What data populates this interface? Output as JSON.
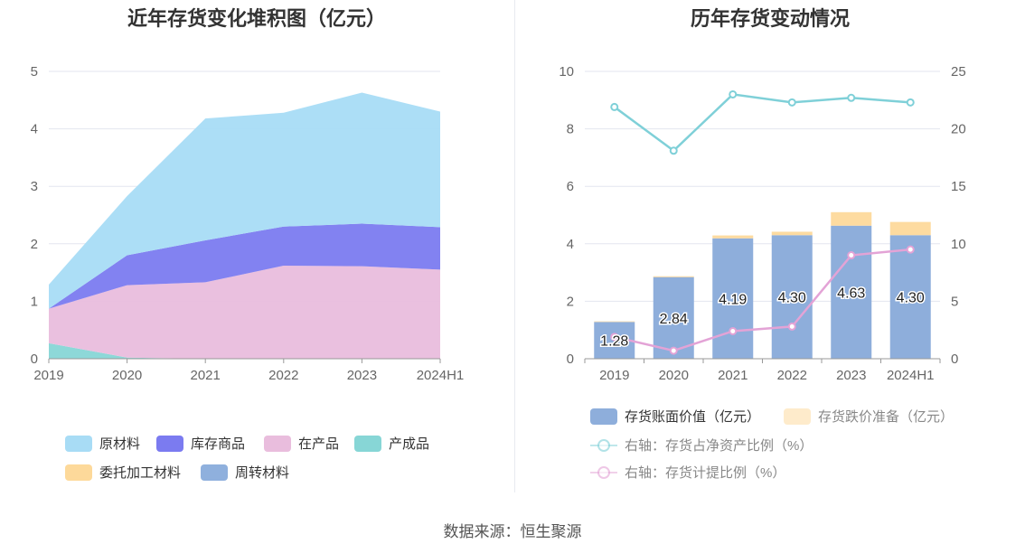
{
  "source_label": "数据来源：恒生聚源",
  "chart_data": [
    {
      "type": "area",
      "title": "近年存货变化堆积图（亿元）",
      "categories": [
        "2019",
        "2020",
        "2021",
        "2022",
        "2023",
        "2024H1"
      ],
      "ylim": [
        0,
        5
      ],
      "yticks": [
        "0",
        "1",
        "2",
        "3",
        "4",
        "5"
      ],
      "stacked": true,
      "series": [
        {
          "name": "原材料",
          "color": "#a8dcf5",
          "values": [
            0.42,
            1.03,
            2.12,
            1.98,
            2.28,
            2.01
          ]
        },
        {
          "name": "库存商品",
          "color": "#7b7bf0",
          "values": [
            0.0,
            0.52,
            0.73,
            0.68,
            0.74,
            0.74
          ]
        },
        {
          "name": "在产品",
          "color": "#e9bddd",
          "values": [
            0.6,
            1.26,
            1.33,
            1.62,
            1.61,
            1.55
          ]
        },
        {
          "name": "产成品",
          "color": "#87d6d6",
          "values": [
            0.27,
            0.02,
            0.0,
            0.0,
            0.0,
            0.0
          ]
        },
        {
          "name": "委托加工材料",
          "color": "#fdd99a",
          "values": [
            0,
            0,
            0,
            0,
            0,
            0
          ]
        },
        {
          "name": "周转材料",
          "color": "#8fb0dd",
          "values": [
            0,
            0,
            0,
            0,
            0,
            0
          ]
        }
      ],
      "legend_position": "bottom"
    },
    {
      "type": "bar",
      "title": "历年存货变动情况",
      "categories": [
        "2019",
        "2020",
        "2021",
        "2022",
        "2023",
        "2024H1"
      ],
      "ylim": [
        0,
        10
      ],
      "yticks": [
        "0",
        "2",
        "4",
        "6",
        "8",
        "10"
      ],
      "y2lim": [
        0,
        25
      ],
      "y2ticks": [
        "0",
        "5",
        "10",
        "15",
        "20",
        "25"
      ],
      "bar_series": [
        {
          "name": "存货账面价值（亿元）",
          "color": "#8eaedb",
          "values": [
            1.28,
            2.84,
            4.19,
            4.3,
            4.63,
            4.3
          ],
          "labels": [
            "1.28",
            "2.84",
            "4.19",
            "4.30",
            "4.63",
            "4.30"
          ]
        },
        {
          "name": "存货跌价准备（亿元）",
          "color": "#fddba0",
          "values": [
            0.02,
            0.03,
            0.1,
            0.12,
            0.47,
            0.46
          ]
        }
      ],
      "line_series": [
        {
          "name": "右轴：存货占净资产比例（%）",
          "color": "#7fd0d8",
          "values": [
            21.9,
            18.1,
            23.0,
            22.3,
            22.7,
            22.3
          ]
        },
        {
          "name": "右轴：存货计提比例（%）",
          "color": "#e3a3d6",
          "values": [
            1.9,
            0.7,
            2.4,
            2.8,
            9.0,
            9.5
          ]
        }
      ],
      "legend_position": "bottom"
    }
  ]
}
